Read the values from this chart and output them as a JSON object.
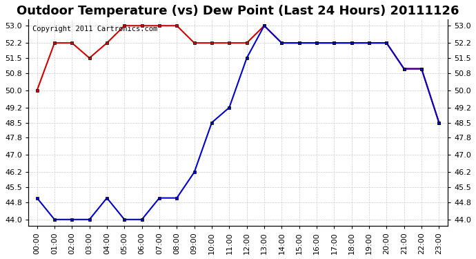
{
  "title": "Outdoor Temperature (vs) Dew Point (Last 24 Hours) 20111126",
  "copyright_text": "Copyright 2011 Cartronics.com",
  "hours": [
    "00:00",
    "01:00",
    "02:00",
    "03:00",
    "04:00",
    "05:00",
    "06:00",
    "07:00",
    "08:00",
    "09:00",
    "10:00",
    "11:00",
    "12:00",
    "13:00",
    "14:00",
    "15:00",
    "16:00",
    "17:00",
    "18:00",
    "19:00",
    "20:00",
    "21:00",
    "22:00",
    "23:00"
  ],
  "temp_red": [
    50.0,
    52.2,
    52.2,
    51.5,
    52.2,
    53.0,
    53.0,
    53.0,
    53.0,
    52.2,
    52.2,
    52.2,
    52.2,
    53.0,
    52.2,
    52.2,
    52.2,
    52.2,
    52.2,
    52.2,
    52.2,
    51.0,
    51.0,
    48.5
  ],
  "dew_blue": [
    45.0,
    44.0,
    44.0,
    44.0,
    45.0,
    44.0,
    44.0,
    45.0,
    45.0,
    46.2,
    48.5,
    49.2,
    51.5,
    53.0,
    52.2,
    52.2,
    52.2,
    52.2,
    52.2,
    52.2,
    52.2,
    51.0,
    51.0,
    48.5
  ],
  "temp_color": "#cc0000",
  "dew_color": "#0000cc",
  "bg_color": "#ffffff",
  "plot_bg_color": "#ffffff",
  "grid_color": "#cccccc",
  "ymin": 44.0,
  "ymax": 53.0,
  "yticks": [
    44.0,
    44.8,
    45.5,
    46.2,
    47.0,
    47.8,
    48.5,
    49.2,
    50.0,
    50.8,
    51.5,
    52.2,
    53.0
  ],
  "title_fontsize": 13,
  "copyright_fontsize": 7.5,
  "tick_fontsize": 8,
  "marker": "s",
  "marker_size": 3,
  "line_width": 1.5
}
